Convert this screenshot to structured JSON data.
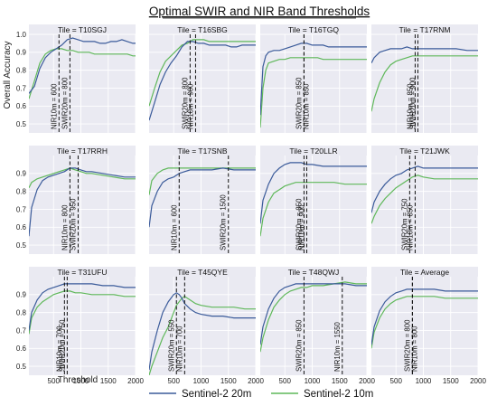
{
  "figure": {
    "title": "Optimal SWIR and NIR Band Thresholds",
    "ylabel": "Overall Accuracy",
    "xlabel": "Threshold"
  },
  "legend": [
    {
      "name": "Sentinel-2 20m",
      "color": "#3b5b9a"
    },
    {
      "name": "Sentinel-2 10m",
      "color": "#5fb85a"
    }
  ],
  "axes": {
    "x_ticks": [
      500,
      1000,
      1500,
      2000
    ],
    "y_ticks_top": [
      0.5,
      0.6,
      0.7,
      0.8,
      0.9,
      1.0
    ],
    "y_ticks_other": [
      0.5,
      0.6,
      0.7,
      0.8,
      0.9
    ]
  },
  "chart_data": [
    {
      "type": "line",
      "title": "Tile = T10SGJ",
      "xlim": [
        50,
        2000
      ],
      "ylim": [
        0.45,
        1.0
      ],
      "x": [
        50,
        150,
        250,
        350,
        450,
        550,
        650,
        750,
        850,
        950,
        1050,
        1150,
        1250,
        1350,
        1450,
        1550,
        1650,
        1750,
        1850,
        1950,
        2000
      ],
      "series": [
        {
          "name": "Sentinel-2 20m",
          "values": [
            0.67,
            0.71,
            0.81,
            0.87,
            0.9,
            0.92,
            0.94,
            0.97,
            0.98,
            0.97,
            0.96,
            0.96,
            0.96,
            0.95,
            0.95,
            0.96,
            0.96,
            0.97,
            0.96,
            0.95,
            0.95
          ]
        },
        {
          "name": "Sentinel-2 10m",
          "values": [
            0.64,
            0.74,
            0.84,
            0.89,
            0.91,
            0.92,
            0.92,
            0.91,
            0.91,
            0.9,
            0.9,
            0.9,
            0.89,
            0.89,
            0.89,
            0.89,
            0.89,
            0.89,
            0.89,
            0.88,
            0.88
          ]
        }
      ],
      "annotations": [
        {
          "x": 600,
          "label": "NIR10m = 600"
        },
        {
          "x": 800,
          "label": "SWIR20m = 800"
        }
      ]
    },
    {
      "type": "line",
      "title": "Tile = T16SBG",
      "xlim": [
        50,
        2000
      ],
      "ylim": [
        0.45,
        1.0
      ],
      "x": [
        50,
        150,
        250,
        350,
        450,
        550,
        650,
        750,
        850,
        950,
        1050,
        1150,
        1250,
        1350,
        1450,
        1550,
        1650,
        1750,
        1850,
        1950,
        2000
      ],
      "series": [
        {
          "name": "Sentinel-2 20m",
          "values": [
            0.52,
            0.62,
            0.72,
            0.79,
            0.84,
            0.88,
            0.93,
            0.96,
            0.96,
            0.95,
            0.95,
            0.94,
            0.94,
            0.94,
            0.94,
            0.93,
            0.93,
            0.94,
            0.94,
            0.94,
            0.94
          ]
        },
        {
          "name": "Sentinel-2 10m",
          "values": [
            0.6,
            0.7,
            0.79,
            0.85,
            0.88,
            0.91,
            0.94,
            0.95,
            0.97,
            0.97,
            0.97,
            0.96,
            0.96,
            0.96,
            0.96,
            0.96,
            0.96,
            0.96,
            0.96,
            0.96,
            0.96
          ]
        }
      ],
      "annotations": [
        {
          "x": 800,
          "label": "SWIR20m = 800"
        },
        {
          "x": 900,
          "label": "NIR10m = 900"
        }
      ]
    },
    {
      "type": "line",
      "title": "Tile = T16TGQ",
      "xlim": [
        50,
        2000
      ],
      "ylim": [
        0.45,
        1.0
      ],
      "x": [
        50,
        100,
        150,
        200,
        300,
        400,
        500,
        600,
        700,
        800,
        900,
        1000,
        1100,
        1200,
        1300,
        1400,
        1500,
        1600,
        1700,
        1800,
        1900,
        2000
      ],
      "series": [
        {
          "name": "Sentinel-2 20m",
          "values": [
            0.55,
            0.82,
            0.88,
            0.9,
            0.91,
            0.91,
            0.92,
            0.93,
            0.94,
            0.95,
            0.95,
            0.94,
            0.94,
            0.94,
            0.93,
            0.93,
            0.93,
            0.93,
            0.93,
            0.93,
            0.93,
            0.93
          ]
        },
        {
          "name": "Sentinel-2 10m",
          "values": [
            0.48,
            0.7,
            0.8,
            0.84,
            0.85,
            0.86,
            0.86,
            0.87,
            0.87,
            0.87,
            0.87,
            0.87,
            0.87,
            0.86,
            0.86,
            0.86,
            0.86,
            0.86,
            0.86,
            0.86,
            0.86,
            0.86
          ]
        }
      ],
      "annotations": [
        {
          "x": 850,
          "label": "SWIR20m = 850"
        },
        {
          "x": 850,
          "label": "NIR10m = 850"
        }
      ]
    },
    {
      "type": "line",
      "title": "Tile = T17RNM",
      "xlim": [
        50,
        2000
      ],
      "ylim": [
        0.45,
        1.0
      ],
      "x": [
        50,
        100,
        200,
        300,
        400,
        500,
        600,
        700,
        800,
        900,
        1000,
        1200,
        1400,
        1600,
        1800,
        2000
      ],
      "series": [
        {
          "name": "Sentinel-2 20m",
          "values": [
            0.84,
            0.87,
            0.9,
            0.91,
            0.92,
            0.92,
            0.92,
            0.93,
            0.92,
            0.92,
            0.92,
            0.92,
            0.92,
            0.92,
            0.91,
            0.91
          ]
        },
        {
          "name": "Sentinel-2 10m",
          "values": [
            0.57,
            0.64,
            0.73,
            0.79,
            0.83,
            0.85,
            0.86,
            0.87,
            0.88,
            0.88,
            0.88,
            0.88,
            0.88,
            0.88,
            0.88,
            0.88
          ]
        }
      ],
      "annotations": [
        {
          "x": 850,
          "label": "NIR10m = 850"
        },
        {
          "x": 900,
          "label": "SWIR20m = 900"
        }
      ]
    },
    {
      "type": "line",
      "title": "Tile = T17RRH",
      "xlim": [
        50,
        2000
      ],
      "ylim": [
        0.45,
        1.0
      ],
      "x": [
        50,
        100,
        200,
        300,
        400,
        500,
        600,
        700,
        800,
        900,
        1000,
        1100,
        1200,
        1400,
        1600,
        1800,
        2000
      ],
      "series": [
        {
          "name": "Sentinel-2 20m",
          "values": [
            0.55,
            0.71,
            0.81,
            0.86,
            0.88,
            0.89,
            0.9,
            0.91,
            0.93,
            0.93,
            0.92,
            0.91,
            0.91,
            0.9,
            0.89,
            0.88,
            0.88
          ]
        },
        {
          "name": "Sentinel-2 10m",
          "values": [
            0.82,
            0.85,
            0.87,
            0.88,
            0.89,
            0.9,
            0.91,
            0.92,
            0.93,
            0.92,
            0.91,
            0.9,
            0.9,
            0.89,
            0.88,
            0.87,
            0.87
          ]
        }
      ],
      "annotations": [
        {
          "x": 800,
          "label": "NIR10m = 800"
        },
        {
          "x": 950,
          "label": "SWIR20m = 950"
        }
      ]
    },
    {
      "type": "line",
      "title": "Tile = T17SNB",
      "xlim": [
        50,
        2000
      ],
      "ylim": [
        0.45,
        1.0
      ],
      "x": [
        50,
        100,
        200,
        300,
        400,
        500,
        600,
        700,
        800,
        900,
        1000,
        1200,
        1400,
        1600,
        1800,
        2000
      ],
      "series": [
        {
          "name": "Sentinel-2 20m",
          "values": [
            0.6,
            0.72,
            0.8,
            0.85,
            0.87,
            0.88,
            0.9,
            0.91,
            0.92,
            0.92,
            0.92,
            0.92,
            0.93,
            0.92,
            0.92,
            0.92
          ]
        },
        {
          "name": "Sentinel-2 10m",
          "values": [
            0.78,
            0.86,
            0.9,
            0.92,
            0.93,
            0.93,
            0.93,
            0.93,
            0.93,
            0.93,
            0.93,
            0.93,
            0.93,
            0.93,
            0.93,
            0.93
          ]
        }
      ],
      "annotations": [
        {
          "x": 600,
          "label": "NIR10m = 600"
        },
        {
          "x": 1500,
          "label": "SWIR20m = 1500"
        }
      ]
    },
    {
      "type": "line",
      "title": "Tile = T20LLR",
      "xlim": [
        50,
        2000
      ],
      "ylim": [
        0.45,
        1.0
      ],
      "x": [
        50,
        100,
        200,
        300,
        400,
        500,
        600,
        700,
        800,
        900,
        1000,
        1200,
        1400,
        1600,
        1800,
        2000
      ],
      "series": [
        {
          "name": "Sentinel-2 20m",
          "values": [
            0.62,
            0.75,
            0.84,
            0.9,
            0.93,
            0.95,
            0.96,
            0.96,
            0.96,
            0.95,
            0.95,
            0.94,
            0.94,
            0.94,
            0.94,
            0.94
          ]
        },
        {
          "name": "Sentinel-2 10m",
          "values": [
            0.55,
            0.65,
            0.74,
            0.79,
            0.81,
            0.83,
            0.84,
            0.85,
            0.85,
            0.85,
            0.85,
            0.85,
            0.85,
            0.84,
            0.84,
            0.84
          ]
        }
      ],
      "annotations": [
        {
          "x": 850,
          "label": "SWIR20m = 850"
        },
        {
          "x": 900,
          "label": "NIR10m = 900"
        }
      ]
    },
    {
      "type": "line",
      "title": "Tile = T21JWK",
      "xlim": [
        50,
        2000
      ],
      "ylim": [
        0.45,
        1.0
      ],
      "x": [
        50,
        100,
        200,
        300,
        400,
        500,
        600,
        700,
        800,
        900,
        1000,
        1200,
        1400,
        1600,
        1800,
        2000
      ],
      "series": [
        {
          "name": "Sentinel-2 20m",
          "values": [
            0.68,
            0.74,
            0.8,
            0.84,
            0.87,
            0.89,
            0.9,
            0.92,
            0.93,
            0.94,
            0.93,
            0.93,
            0.93,
            0.93,
            0.93,
            0.93
          ]
        },
        {
          "name": "Sentinel-2 10m",
          "values": [
            0.62,
            0.66,
            0.72,
            0.76,
            0.79,
            0.82,
            0.84,
            0.86,
            0.88,
            0.89,
            0.88,
            0.87,
            0.87,
            0.87,
            0.87,
            0.87
          ]
        }
      ],
      "annotations": [
        {
          "x": 750,
          "label": "SWIR20m = 750"
        },
        {
          "x": 850,
          "label": "NIR10m = 850"
        }
      ]
    },
    {
      "type": "line",
      "title": "Tile = T31UFU",
      "xlim": [
        50,
        2000
      ],
      "ylim": [
        0.45,
        1.0
      ],
      "x": [
        50,
        100,
        200,
        300,
        400,
        500,
        600,
        700,
        800,
        900,
        1000,
        1200,
        1400,
        1600,
        1800,
        2000
      ],
      "series": [
        {
          "name": "Sentinel-2 20m",
          "values": [
            0.7,
            0.8,
            0.87,
            0.91,
            0.93,
            0.94,
            0.95,
            0.96,
            0.96,
            0.96,
            0.96,
            0.96,
            0.95,
            0.95,
            0.94,
            0.94
          ]
        },
        {
          "name": "Sentinel-2 10m",
          "values": [
            0.68,
            0.77,
            0.83,
            0.86,
            0.88,
            0.9,
            0.91,
            0.92,
            0.92,
            0.91,
            0.91,
            0.9,
            0.9,
            0.9,
            0.89,
            0.89
          ]
        }
      ],
      "annotations": [
        {
          "x": 700,
          "label": "NIR10m = 700"
        },
        {
          "x": 750,
          "label": "SWIR20m = 750"
        }
      ]
    },
    {
      "type": "line",
      "title": "Tile = T45QYE",
      "xlim": [
        50,
        2000
      ],
      "ylim": [
        0.45,
        1.0
      ],
      "x": [
        50,
        100,
        200,
        300,
        400,
        500,
        550,
        600,
        650,
        700,
        800,
        900,
        1000,
        1200,
        1400,
        1600,
        1800,
        2000
      ],
      "series": [
        {
          "name": "Sentinel-2 20m",
          "values": [
            0.48,
            0.58,
            0.7,
            0.8,
            0.86,
            0.9,
            0.91,
            0.9,
            0.88,
            0.85,
            0.82,
            0.8,
            0.79,
            0.78,
            0.78,
            0.77,
            0.77,
            0.77
          ]
        },
        {
          "name": "Sentinel-2 10m",
          "values": [
            0.45,
            0.5,
            0.58,
            0.66,
            0.72,
            0.8,
            0.84,
            0.86,
            0.88,
            0.89,
            0.87,
            0.85,
            0.84,
            0.83,
            0.83,
            0.83,
            0.82,
            0.82
          ]
        }
      ],
      "annotations": [
        {
          "x": 550,
          "label": "SWIR20m = 550"
        },
        {
          "x": 700,
          "label": "NIR10m = 700"
        }
      ]
    },
    {
      "type": "line",
      "title": "Tile = T48QWJ",
      "xlim": [
        50,
        2000
      ],
      "ylim": [
        0.45,
        1.0
      ],
      "x": [
        50,
        100,
        200,
        300,
        400,
        500,
        600,
        700,
        800,
        900,
        1000,
        1200,
        1400,
        1600,
        1800,
        2000
      ],
      "series": [
        {
          "name": "Sentinel-2 20m",
          "values": [
            0.62,
            0.72,
            0.82,
            0.88,
            0.92,
            0.94,
            0.95,
            0.96,
            0.96,
            0.96,
            0.96,
            0.96,
            0.96,
            0.96,
            0.95,
            0.95
          ]
        },
        {
          "name": "Sentinel-2 10m",
          "values": [
            0.58,
            0.66,
            0.76,
            0.83,
            0.87,
            0.9,
            0.92,
            0.93,
            0.94,
            0.94,
            0.95,
            0.95,
            0.96,
            0.97,
            0.96,
            0.96
          ]
        }
      ],
      "annotations": [
        {
          "x": 850,
          "label": "SWIR20m = 850"
        },
        {
          "x": 1550,
          "label": "NIR10m = 1550"
        }
      ]
    },
    {
      "type": "line",
      "title": "Tile = Average",
      "xlim": [
        50,
        2000
      ],
      "ylim": [
        0.45,
        1.0
      ],
      "x": [
        50,
        100,
        200,
        300,
        400,
        500,
        600,
        700,
        800,
        900,
        1000,
        1200,
        1400,
        1600,
        1800,
        2000
      ],
      "series": [
        {
          "name": "Sentinel-2 20m",
          "values": [
            0.62,
            0.72,
            0.81,
            0.86,
            0.89,
            0.91,
            0.92,
            0.93,
            0.93,
            0.93,
            0.93,
            0.93,
            0.92,
            0.92,
            0.92,
            0.92
          ]
        },
        {
          "name": "Sentinel-2 10m",
          "values": [
            0.6,
            0.69,
            0.77,
            0.82,
            0.85,
            0.87,
            0.88,
            0.89,
            0.89,
            0.89,
            0.89,
            0.89,
            0.88,
            0.88,
            0.88,
            0.88
          ]
        }
      ],
      "annotations": [
        {
          "x": 800,
          "label": "SWIR20m = 800"
        },
        {
          "x": 800,
          "label": "NIR10m = 800"
        }
      ]
    }
  ]
}
